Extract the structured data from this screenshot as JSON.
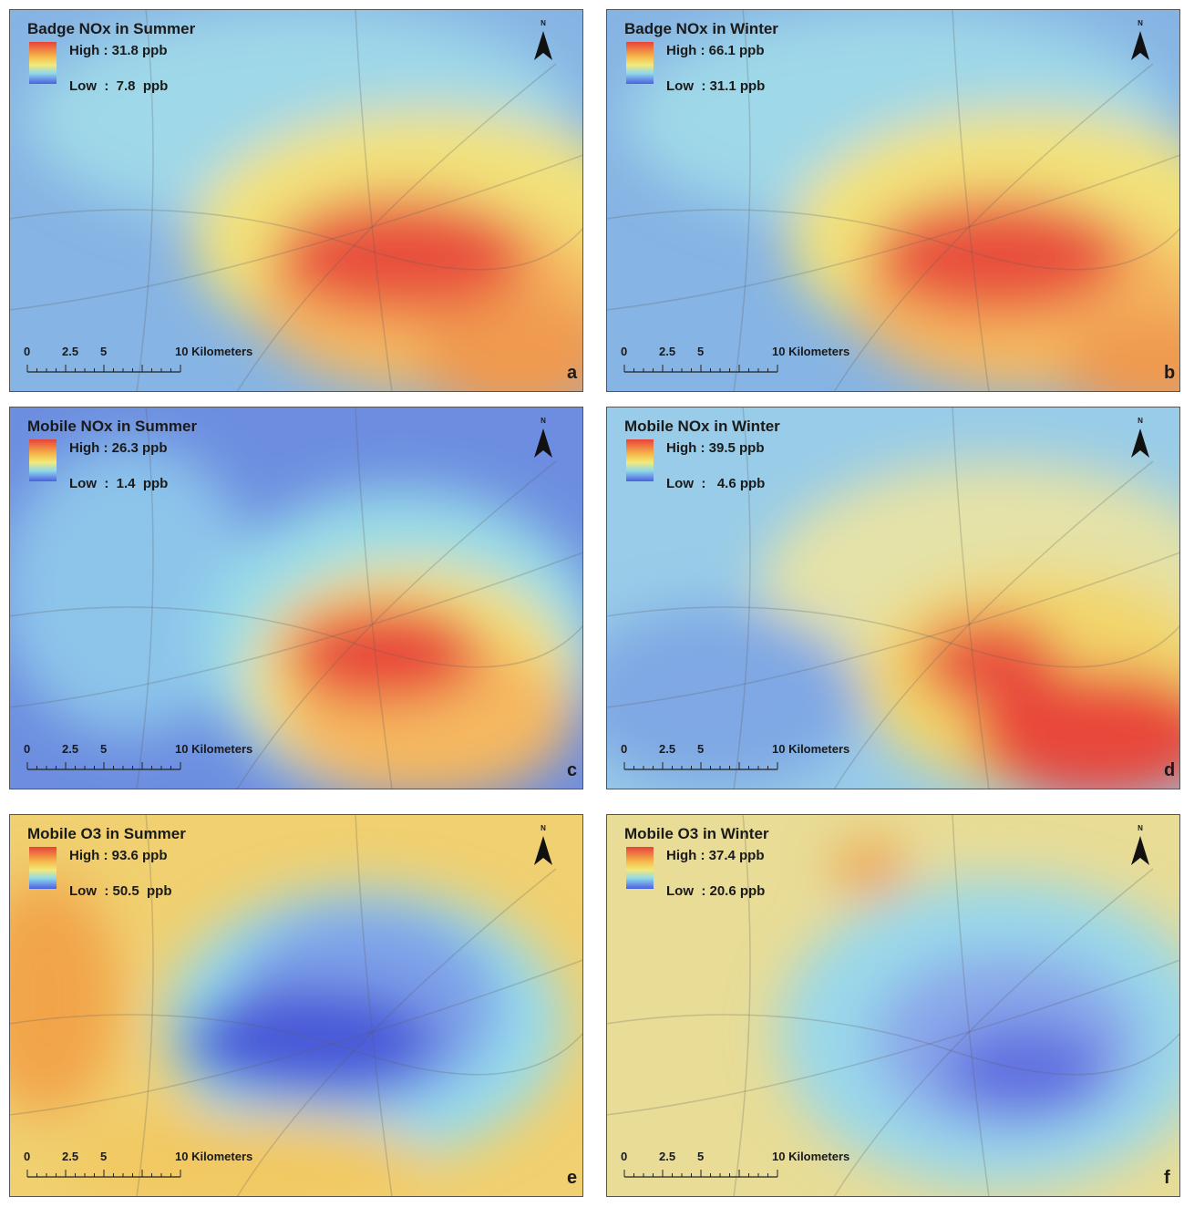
{
  "north": "N",
  "scale_labels": [
    "0",
    "2.5",
    "5",
    "10 Kilometers"
  ],
  "panels": [
    {
      "title": "Badge NOx in Summer",
      "high": "High : 31.8 ppb",
      "low": "Low  :  7.8  ppb",
      "letter": "a"
    },
    {
      "title": "Badge NOx in Winter",
      "high": "High : 66.1 ppb",
      "low": "Low  : 31.1 ppb",
      "letter": "b"
    },
    {
      "title": "Mobile NOx in Summer",
      "high": "High : 26.3 ppb",
      "low": "Low  :  1.4  ppb",
      "letter": "c"
    },
    {
      "title": "Mobile NOx in Winter",
      "high": "High : 39.5 ppb",
      "low": "Low  :   4.6 ppb",
      "letter": "d"
    },
    {
      "title": "Mobile O3 in Summer",
      "high": "High : 93.6 ppb",
      "low": "Low  : 50.5  ppb",
      "letter": "e"
    },
    {
      "title": "Mobile O3 in Winter",
      "high": "High : 37.4 ppb",
      "low": "Low  : 20.6 ppb",
      "letter": "f"
    }
  ]
}
